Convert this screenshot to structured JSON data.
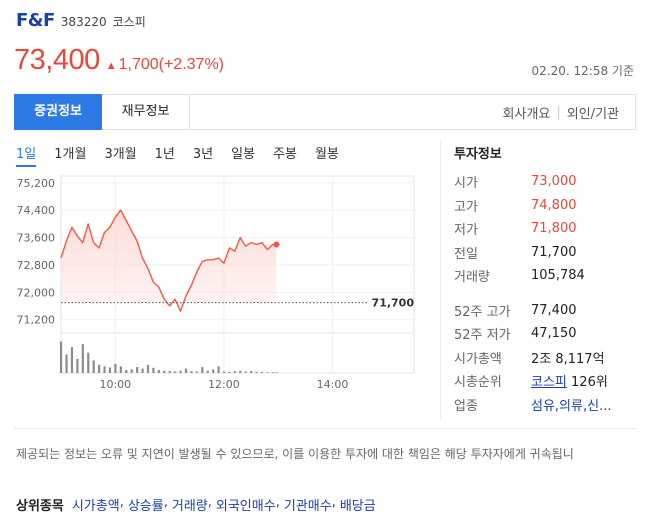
{
  "stock": {
    "name": "F&F",
    "code": "383220",
    "market": "코스피",
    "price": "73,400",
    "change": "1,700(+2.37%)",
    "timestamp": "02.20. 12:58 기준",
    "up_color": "#e8473a"
  },
  "tabs": {
    "items": [
      {
        "label": "증권정보",
        "active": true
      },
      {
        "label": "재무정보",
        "active": false
      }
    ],
    "right_links": [
      "회사개요",
      "외인/기관"
    ]
  },
  "periods": [
    "1일",
    "1개월",
    "3개월",
    "1년",
    "3년",
    "일봉",
    "주봉",
    "월봉"
  ],
  "active_period": "1일",
  "chart_data": {
    "type": "line",
    "x": [
      "09:00",
      "09:06",
      "09:12",
      "09:18",
      "09:24",
      "09:30",
      "09:36",
      "09:42",
      "09:48",
      "09:54",
      "10:00",
      "10:06",
      "10:12",
      "10:18",
      "10:24",
      "10:30",
      "10:36",
      "10:42",
      "10:48",
      "10:54",
      "11:00",
      "11:06",
      "11:12",
      "11:18",
      "11:24",
      "11:30",
      "11:36",
      "11:42",
      "11:48",
      "11:54",
      "12:00",
      "12:06",
      "12:12",
      "12:18",
      "12:24",
      "12:30",
      "12:36",
      "12:42",
      "12:48",
      "12:54",
      "12:58"
    ],
    "y": [
      73000,
      73500,
      73900,
      73650,
      73450,
      74000,
      73450,
      73300,
      73750,
      73900,
      74200,
      74400,
      74100,
      73800,
      73500,
      73000,
      72700,
      72300,
      72150,
      71800,
      71600,
      71800,
      71450,
      71900,
      72200,
      72600,
      72900,
      72950,
      72950,
      73000,
      72850,
      73300,
      73200,
      73600,
      73350,
      73450,
      73400,
      73450,
      73250,
      73400,
      73400
    ],
    "xticks": [
      "10:00",
      "12:00",
      "14:00"
    ],
    "yticks": [
      "75,200",
      "74,400",
      "73,600",
      "72,800",
      "72,000",
      "71,200"
    ],
    "ylim": [
      70900,
      75400
    ],
    "reference_label": "71,700",
    "reference_value": 71700,
    "volume": [
      0.85,
      0.5,
      0.7,
      0.38,
      0.78,
      0.55,
      0.34,
      0.22,
      0.18,
      0.15,
      0.25,
      0.18,
      0.08,
      0.1,
      0.16,
      0.12,
      0.22,
      0.14,
      0.08,
      0.06,
      0.05,
      0.04,
      0.06,
      0.12,
      0.05,
      0.04,
      0.16,
      0.06,
      0.1,
      0.18,
      0.04,
      0.03,
      0.05,
      0.06,
      0.04,
      0.05,
      0.03,
      0.03,
      0.02,
      0.02,
      0.02
    ],
    "line_color": "#f25a45",
    "fill_color": "#fbd9d4",
    "volume_color": "#8c8c8c"
  },
  "investment": {
    "title": "투자정보",
    "rows_top": [
      {
        "label": "시가",
        "value": "73,000",
        "color": "red"
      },
      {
        "label": "고가",
        "value": "74,800",
        "color": "red"
      },
      {
        "label": "저가",
        "value": "71,800",
        "color": "red"
      },
      {
        "label": "전일",
        "value": "71,700",
        "color": ""
      },
      {
        "label": "거래량",
        "value": "105,784",
        "color": ""
      }
    ],
    "week52_high_label": "52주 고가",
    "week52_high": "77,400",
    "week52_low_label": "52주 저가",
    "week52_low": "47,150",
    "market_cap_label": "시가총액",
    "market_cap": "2조 8,117억",
    "rank_label": "시총순위",
    "rank_market": "코스피",
    "rank_value": "126위",
    "industry_label": "업종",
    "industry": "섬유,의류,신..."
  },
  "notice": "제공되는 정보는 오류 및 지연이 발생될 수 있으므로, 이를 이용한 투자에 대한 책임은 해당 투자자에게 귀속됩니",
  "top_items": {
    "label": "상위종목",
    "links": [
      "시가총액",
      "상승률",
      "거래량",
      "외국인매수",
      "기관매수",
      "배당금"
    ]
  }
}
